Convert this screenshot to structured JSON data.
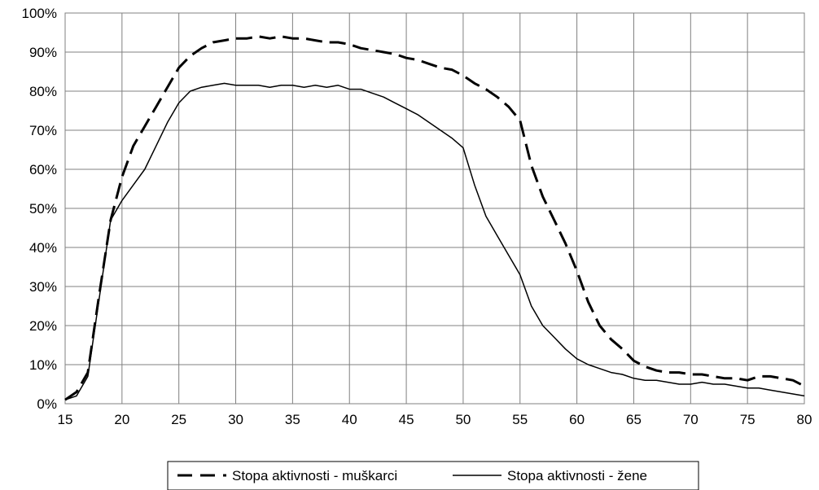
{
  "chart_data": {
    "type": "line",
    "title": "",
    "xlabel": "",
    "ylabel": "",
    "xlim": [
      15,
      80
    ],
    "ylim": [
      0,
      100
    ],
    "x_ticks": [
      "15",
      "20",
      "25",
      "30",
      "35",
      "40",
      "45",
      "50",
      "55",
      "60",
      "65",
      "70",
      "75",
      "80"
    ],
    "y_ticks": [
      "0%",
      "10%",
      "20%",
      "30%",
      "40%",
      "50%",
      "60%",
      "70%",
      "80%",
      "90%",
      "100%"
    ],
    "grid": true,
    "legend_position": "bottom",
    "series": [
      {
        "name": "Stopa aktivnosti - muškarci",
        "style": "dashed",
        "color": "#000000",
        "x": [
          15,
          16,
          17,
          18,
          19,
          20,
          21,
          22,
          23,
          24,
          25,
          26,
          27,
          28,
          29,
          30,
          31,
          32,
          33,
          34,
          35,
          36,
          37,
          38,
          39,
          40,
          41,
          42,
          43,
          44,
          45,
          46,
          47,
          48,
          49,
          50,
          51,
          52,
          53,
          54,
          55,
          56,
          57,
          58,
          59,
          60,
          61,
          62,
          63,
          64,
          65,
          66,
          67,
          68,
          69,
          70,
          71,
          72,
          73,
          74,
          75,
          76,
          77,
          78,
          79,
          80
        ],
        "values": [
          1,
          3,
          8,
          28,
          47,
          58,
          66,
          71,
          76,
          81,
          86,
          89,
          91,
          92.5,
          93,
          93.5,
          93.5,
          94,
          93.5,
          94,
          93.5,
          93.5,
          93,
          92.5,
          92.5,
          92,
          91,
          90.5,
          90,
          89.5,
          88.5,
          88,
          87,
          86,
          85.5,
          84,
          82,
          80.5,
          78.5,
          76,
          72.5,
          61,
          53,
          47,
          41,
          34,
          26,
          20,
          16.5,
          14,
          11,
          9.5,
          8.5,
          8,
          8,
          7.5,
          7.5,
          7,
          6.5,
          6.5,
          6,
          7,
          7,
          6.5,
          6,
          4.5
        ]
      },
      {
        "name": "Stopa aktivnosti - žene",
        "style": "solid",
        "color": "#000000",
        "x": [
          15,
          16,
          17,
          18,
          19,
          20,
          21,
          22,
          23,
          24,
          25,
          26,
          27,
          28,
          29,
          30,
          31,
          32,
          33,
          34,
          35,
          36,
          37,
          38,
          39,
          40,
          41,
          42,
          43,
          44,
          45,
          46,
          47,
          48,
          49,
          50,
          51,
          52,
          53,
          54,
          55,
          56,
          57,
          58,
          59,
          60,
          61,
          62,
          63,
          64,
          65,
          66,
          67,
          68,
          69,
          70,
          71,
          72,
          73,
          74,
          75,
          76,
          77,
          78,
          79,
          80
        ],
        "values": [
          1,
          2,
          7,
          27,
          47,
          52,
          56,
          60,
          66,
          72,
          77,
          80,
          81,
          81.5,
          82,
          81.5,
          81.5,
          81.5,
          81,
          81.5,
          81.5,
          81,
          81.5,
          81,
          81.5,
          80.5,
          80.5,
          79.5,
          78.5,
          77,
          75.5,
          74,
          72,
          70,
          68,
          65.5,
          56,
          48,
          43,
          38,
          33,
          25,
          20,
          17,
          14,
          11.5,
          10,
          9,
          8,
          7.5,
          6.5,
          6,
          6,
          5.5,
          5,
          5,
          5.5,
          5,
          5,
          4.5,
          4,
          4,
          3.5,
          3,
          2.5,
          2
        ]
      }
    ]
  }
}
